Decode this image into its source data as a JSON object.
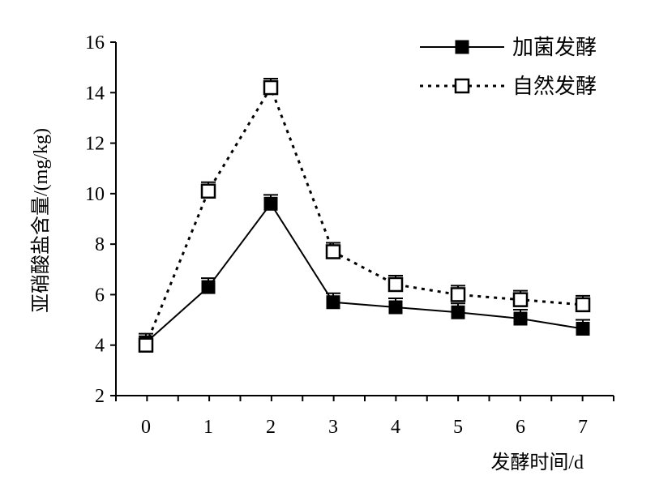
{
  "chart_data": {
    "type": "line",
    "title": "",
    "xlabel": "发酵时间/d",
    "ylabel": "亚硝酸盐含量/(mg/kg)",
    "x": [
      0,
      1,
      2,
      3,
      4,
      5,
      6,
      7
    ],
    "xticks": [
      "0",
      "1",
      "2",
      "3",
      "4",
      "5",
      "6",
      "7"
    ],
    "ylim": [
      2,
      16
    ],
    "yticks": [
      "2",
      "4",
      "6",
      "8",
      "10",
      "12",
      "14",
      "16"
    ],
    "grid": false,
    "legend_position": "top-right",
    "series": [
      {
        "name": "加菌发酵",
        "style": "solid",
        "marker": "filled-square",
        "color": "#000000",
        "values": [
          4.1,
          6.3,
          9.6,
          5.7,
          5.5,
          5.3,
          5.05,
          4.65
        ]
      },
      {
        "name": "自然发酵",
        "style": "dotted",
        "marker": "open-square",
        "color": "#000000",
        "values": [
          4.0,
          10.1,
          14.2,
          7.7,
          6.4,
          6.0,
          5.8,
          5.6
        ]
      }
    ]
  }
}
